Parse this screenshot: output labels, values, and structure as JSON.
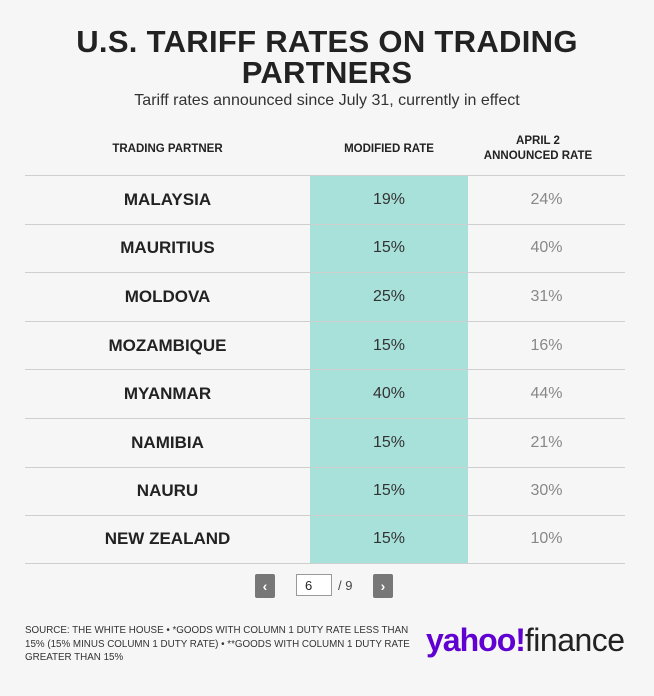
{
  "header": {
    "title": "U.S. TARIFF RATES ON TRADING PARTNERS",
    "subtitle": "Tariff rates announced since July 31, currently in effect"
  },
  "chart_data": {
    "type": "table",
    "columns": [
      "TRADING PARTNER",
      "MODIFIED RATE",
      "APRIL 2 ANNOUNCED RATE"
    ],
    "rows": [
      {
        "partner": "MALAYSIA",
        "modified": "19%",
        "april": "24%"
      },
      {
        "partner": "MAURITIUS",
        "modified": "15%",
        "april": "40%"
      },
      {
        "partner": "MOLDOVA",
        "modified": "25%",
        "april": "31%"
      },
      {
        "partner": "MOZAMBIQUE",
        "modified": "15%",
        "april": "16%"
      },
      {
        "partner": "MYANMAR",
        "modified": "40%",
        "april": "44%"
      },
      {
        "partner": "NAMIBIA",
        "modified": "15%",
        "april": "21%"
      },
      {
        "partner": "NAURU",
        "modified": "15%",
        "april": "30%"
      },
      {
        "partner": "NEW ZEALAND",
        "modified": "15%",
        "april": "10%"
      }
    ]
  },
  "pagination": {
    "prev_label": "‹",
    "next_label": "›",
    "current_page": "6",
    "total_label": "/ 9"
  },
  "footer": {
    "source": "SOURCE: THE WHITE HOUSE • *GOODS WITH COLUMN 1 DUTY RATE LESS THAN 15% (15% MINUS COLUMN 1 DUTY RATE) • **GOODS WITH COLUMN 1 DUTY RATE GREATER THAN 15%",
    "logo_yahoo": "yahoo!",
    "logo_finance": "finance"
  },
  "colors": {
    "highlight": "#a8e1da",
    "brand": "#6001d2"
  }
}
